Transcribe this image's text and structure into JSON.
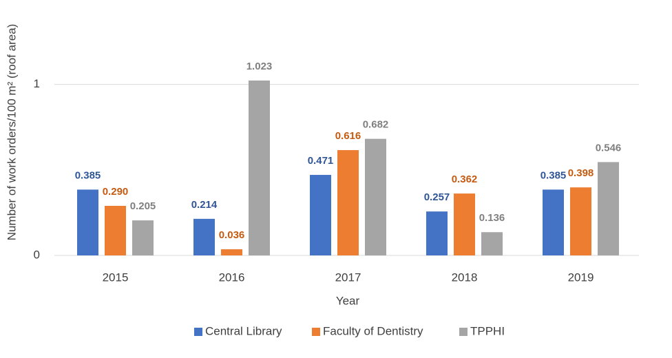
{
  "chart_data": {
    "type": "bar",
    "x_label": "Year",
    "y_label": "Number of work orders/100 m² (roof area)",
    "categories": [
      "2015",
      "2016",
      "2017",
      "2018",
      "2019"
    ],
    "series": [
      {
        "name": "Central Library",
        "color": "#4472c4",
        "label_color": "#2f5597",
        "values": [
          0.385,
          0.214,
          0.471,
          0.257,
          0.385
        ],
        "value_labels": [
          "0.385",
          "0.214",
          "0.471",
          "0.257",
          "0.385"
        ]
      },
      {
        "name": "Faculty of Dentistry",
        "color": "#ed7d31",
        "label_color": "#c55a11",
        "values": [
          0.29,
          0.036,
          0.616,
          0.362,
          0.398
        ],
        "value_labels": [
          "0.290",
          "0.036",
          "0.616",
          "0.362",
          "0.398"
        ]
      },
      {
        "name": "TPPHI",
        "color": "#a5a5a5",
        "label_color": "#7f7f7f",
        "values": [
          0.205,
          1.023,
          0.682,
          0.136,
          0.546
        ],
        "value_labels": [
          "0.205",
          "1.023",
          "0.682",
          "0.136",
          "0.546"
        ]
      }
    ],
    "ylim": [
      0,
      1.2
    ],
    "yticks": [
      0,
      1
    ],
    "grid": true,
    "legend": "bottom"
  }
}
